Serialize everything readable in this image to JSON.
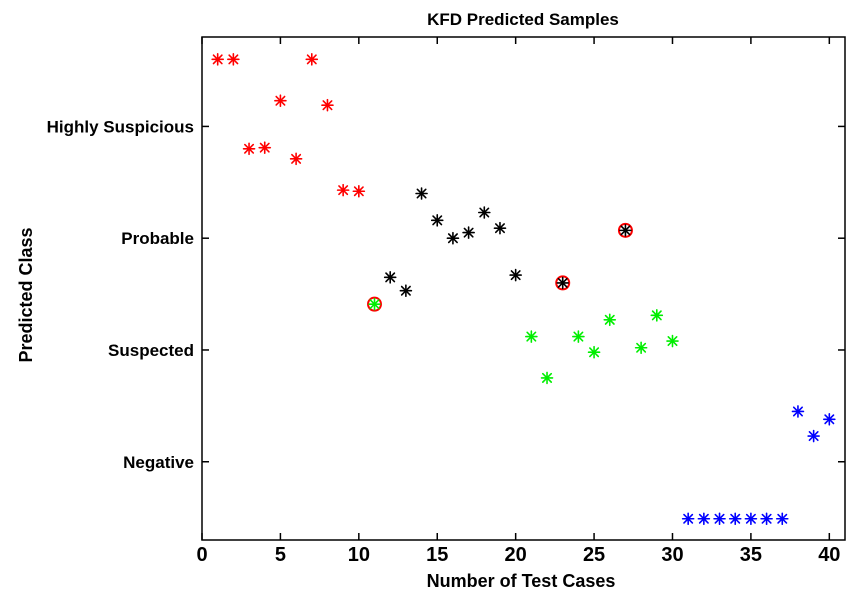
{
  "chart_data": {
    "type": "scatter",
    "title": "KFD Predicted Samples",
    "xlabel": "Number of Test Cases",
    "ylabel": "Predicted Class",
    "xlim": [
      0,
      41
    ],
    "x_ticks": [
      0,
      5,
      10,
      15,
      20,
      25,
      30,
      35,
      40
    ],
    "ylim": [
      0.3,
      4.8
    ],
    "y_ticks": [
      {
        "value": 1,
        "label": "Negative"
      },
      {
        "value": 2,
        "label": "Suspected"
      },
      {
        "value": 3,
        "label": "Probable"
      },
      {
        "value": 4,
        "label": "Highly Suspicious"
      }
    ],
    "grid": false,
    "marker": "asterisk",
    "series": [
      {
        "color": "#ff0000",
        "points": [
          [
            1,
            4.6
          ],
          [
            2,
            4.6
          ],
          [
            3,
            3.8
          ],
          [
            4,
            3.81
          ],
          [
            5,
            4.23
          ],
          [
            6,
            3.71
          ],
          [
            7,
            4.6
          ],
          [
            8,
            4.19
          ],
          [
            9,
            3.43
          ],
          [
            10,
            3.42
          ]
        ]
      },
      {
        "color": "#000000",
        "points": [
          [
            12,
            2.65
          ],
          [
            13,
            2.53
          ],
          [
            14,
            3.4
          ],
          [
            15,
            3.16
          ],
          [
            16,
            3.0
          ],
          [
            17,
            3.05
          ],
          [
            18,
            3.23
          ],
          [
            19,
            3.09
          ],
          [
            20,
            2.67
          ],
          [
            23,
            2.6
          ],
          [
            27,
            3.07
          ]
        ]
      },
      {
        "color": "#00ee00",
        "points": [
          [
            11,
            2.41
          ],
          [
            21,
            2.12
          ],
          [
            22,
            1.75
          ],
          [
            24,
            2.12
          ],
          [
            25,
            1.98
          ],
          [
            26,
            2.27
          ],
          [
            28,
            2.02
          ],
          [
            29,
            2.31
          ],
          [
            30,
            2.08
          ]
        ]
      },
      {
        "color": "#0000ff",
        "points": [
          [
            31,
            0.49
          ],
          [
            32,
            0.49
          ],
          [
            33,
            0.49
          ],
          [
            34,
            0.49
          ],
          [
            35,
            0.49
          ],
          [
            36,
            0.49
          ],
          [
            37,
            0.49
          ],
          [
            38,
            1.45
          ],
          [
            39,
            1.23
          ],
          [
            40,
            1.38
          ]
        ]
      }
    ],
    "highlighted_points": [
      [
        11,
        2.41
      ],
      [
        23,
        2.6
      ],
      [
        27,
        3.07
      ]
    ],
    "highlight_color": "#ff0000"
  }
}
